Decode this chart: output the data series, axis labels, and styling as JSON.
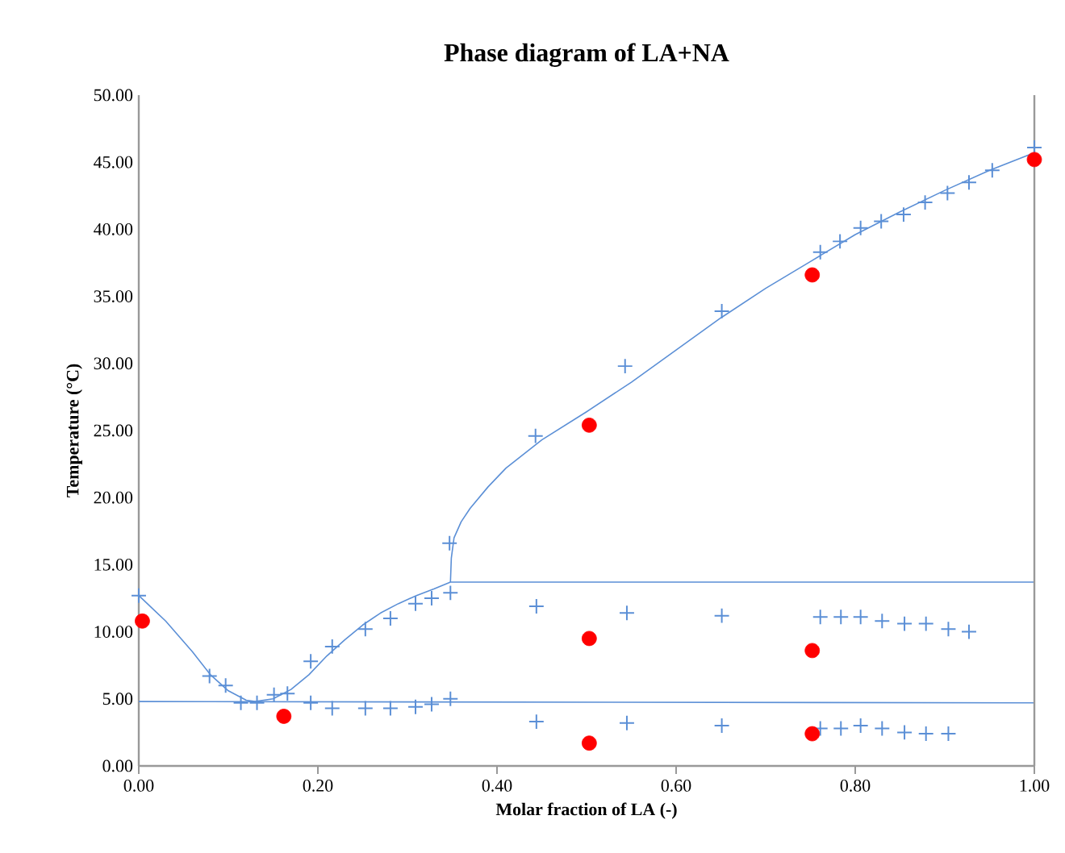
{
  "chart_data": {
    "type": "scatter",
    "title": "Phase diagram of LA+NA",
    "xlabel": "Molar fraction of LA (-)",
    "ylabel": "Temperature (°C)",
    "xlim": [
      0,
      1
    ],
    "ylim": [
      0,
      50
    ],
    "xticks": [
      {
        "value": 0,
        "label": "0.00"
      },
      {
        "value": 0.2,
        "label": "0.20"
      },
      {
        "value": 0.4,
        "label": "0.40"
      },
      {
        "value": 0.6,
        "label": "0.60"
      },
      {
        "value": 0.8,
        "label": "0.80"
      },
      {
        "value": 1,
        "label": "1.00"
      }
    ],
    "yticks": [
      {
        "value": 0,
        "label": "0.00"
      },
      {
        "value": 5,
        "label": "5.00"
      },
      {
        "value": 10,
        "label": "10.00"
      },
      {
        "value": 15,
        "label": "15.00"
      },
      {
        "value": 20,
        "label": "20.00"
      },
      {
        "value": 25,
        "label": "25.00"
      },
      {
        "value": 30,
        "label": "30.00"
      },
      {
        "value": 35,
        "label": "35.00"
      },
      {
        "value": 40,
        "label": "40.00"
      },
      {
        "value": 45,
        "label": "45.00"
      },
      {
        "value": 50,
        "label": "50.00"
      }
    ],
    "grid": false,
    "series": [
      {
        "type": "line",
        "marker": "none",
        "color": "#5b8fd6",
        "x": [
          0,
          0.03,
          0.06,
          0.08,
          0.1,
          0.12,
          0.13,
          0.15,
          0.17,
          0.19,
          0.21,
          0.23,
          0.25,
          0.27,
          0.29,
          0.31,
          0.33,
          0.348,
          1
        ],
        "values": [
          12.7,
          10.8,
          8.5,
          6.8,
          5.6,
          4.9,
          4.8,
          5.0,
          5.7,
          6.8,
          8.2,
          9.4,
          10.5,
          11.4,
          12.1,
          12.7,
          13.2,
          13.7,
          13.7
        ]
      },
      {
        "type": "line",
        "marker": "none",
        "color": "#5b8fd6",
        "x": [
          0.348,
          0.349,
          0.352,
          0.36,
          0.37,
          0.39,
          0.41,
          0.45,
          0.5,
          0.55,
          0.6,
          0.65,
          0.7,
          0.75,
          0.8,
          0.85,
          0.9,
          0.95,
          1.0
        ],
        "values": [
          13.7,
          15.5,
          17.0,
          18.2,
          19.2,
          20.8,
          22.2,
          24.3,
          26.4,
          28.6,
          31.0,
          33.4,
          35.6,
          37.6,
          39.6,
          41.3,
          42.9,
          44.4,
          45.7
        ]
      },
      {
        "type": "line",
        "marker": "none",
        "color": "#5b8fd6",
        "x": [
          0,
          1
        ],
        "values": [
          4.8,
          4.7
        ]
      },
      {
        "marker": "cross",
        "color": "#5b8fd6",
        "x": [
          0,
          0.079,
          0.097,
          0.114,
          0.132,
          0.151,
          0.166,
          0.192,
          0.216,
          0.253,
          0.281,
          0.309,
          0.327,
          0.348,
          0.347,
          0.443,
          0.543,
          0.651,
          0.761,
          0.783,
          0.806,
          0.829,
          0.854,
          0.878,
          0.903,
          0.927,
          0.953,
          1.0,
          0.192,
          0.216,
          0.253,
          0.281,
          0.309,
          0.327,
          0.348,
          0.444,
          0.444,
          0.545,
          0.545,
          0.651,
          0.651,
          0.761,
          0.784,
          0.806,
          0.83,
          0.855,
          0.879,
          0.904,
          0.927,
          0.761,
          0.784,
          0.806,
          0.83,
          0.855,
          0.879,
          0.904
        ],
        "values": [
          12.7,
          6.7,
          6.0,
          4.7,
          4.7,
          5.3,
          5.4,
          7.8,
          8.9,
          10.2,
          11.0,
          12.1,
          12.5,
          12.9,
          16.6,
          24.6,
          29.8,
          33.9,
          38.3,
          39.1,
          40.1,
          40.6,
          41.1,
          42.0,
          42.7,
          43.5,
          44.4,
          46.1,
          4.7,
          4.3,
          4.3,
          4.3,
          4.4,
          4.6,
          5.0,
          11.9,
          3.3,
          11.4,
          3.2,
          11.2,
          3.0,
          11.1,
          11.1,
          11.1,
          10.8,
          10.6,
          10.6,
          10.2,
          10.0,
          2.8,
          2.8,
          3.0,
          2.8,
          2.5,
          2.4,
          2.4
        ]
      },
      {
        "marker": "circle",
        "color": "#ff0000",
        "x": [
          0.004,
          0.162,
          0.503,
          0.503,
          0.503,
          0.752,
          0.752,
          0.752,
          1.0
        ],
        "values": [
          10.8,
          3.7,
          25.4,
          9.5,
          1.7,
          36.6,
          8.6,
          2.4,
          45.2
        ]
      }
    ]
  }
}
